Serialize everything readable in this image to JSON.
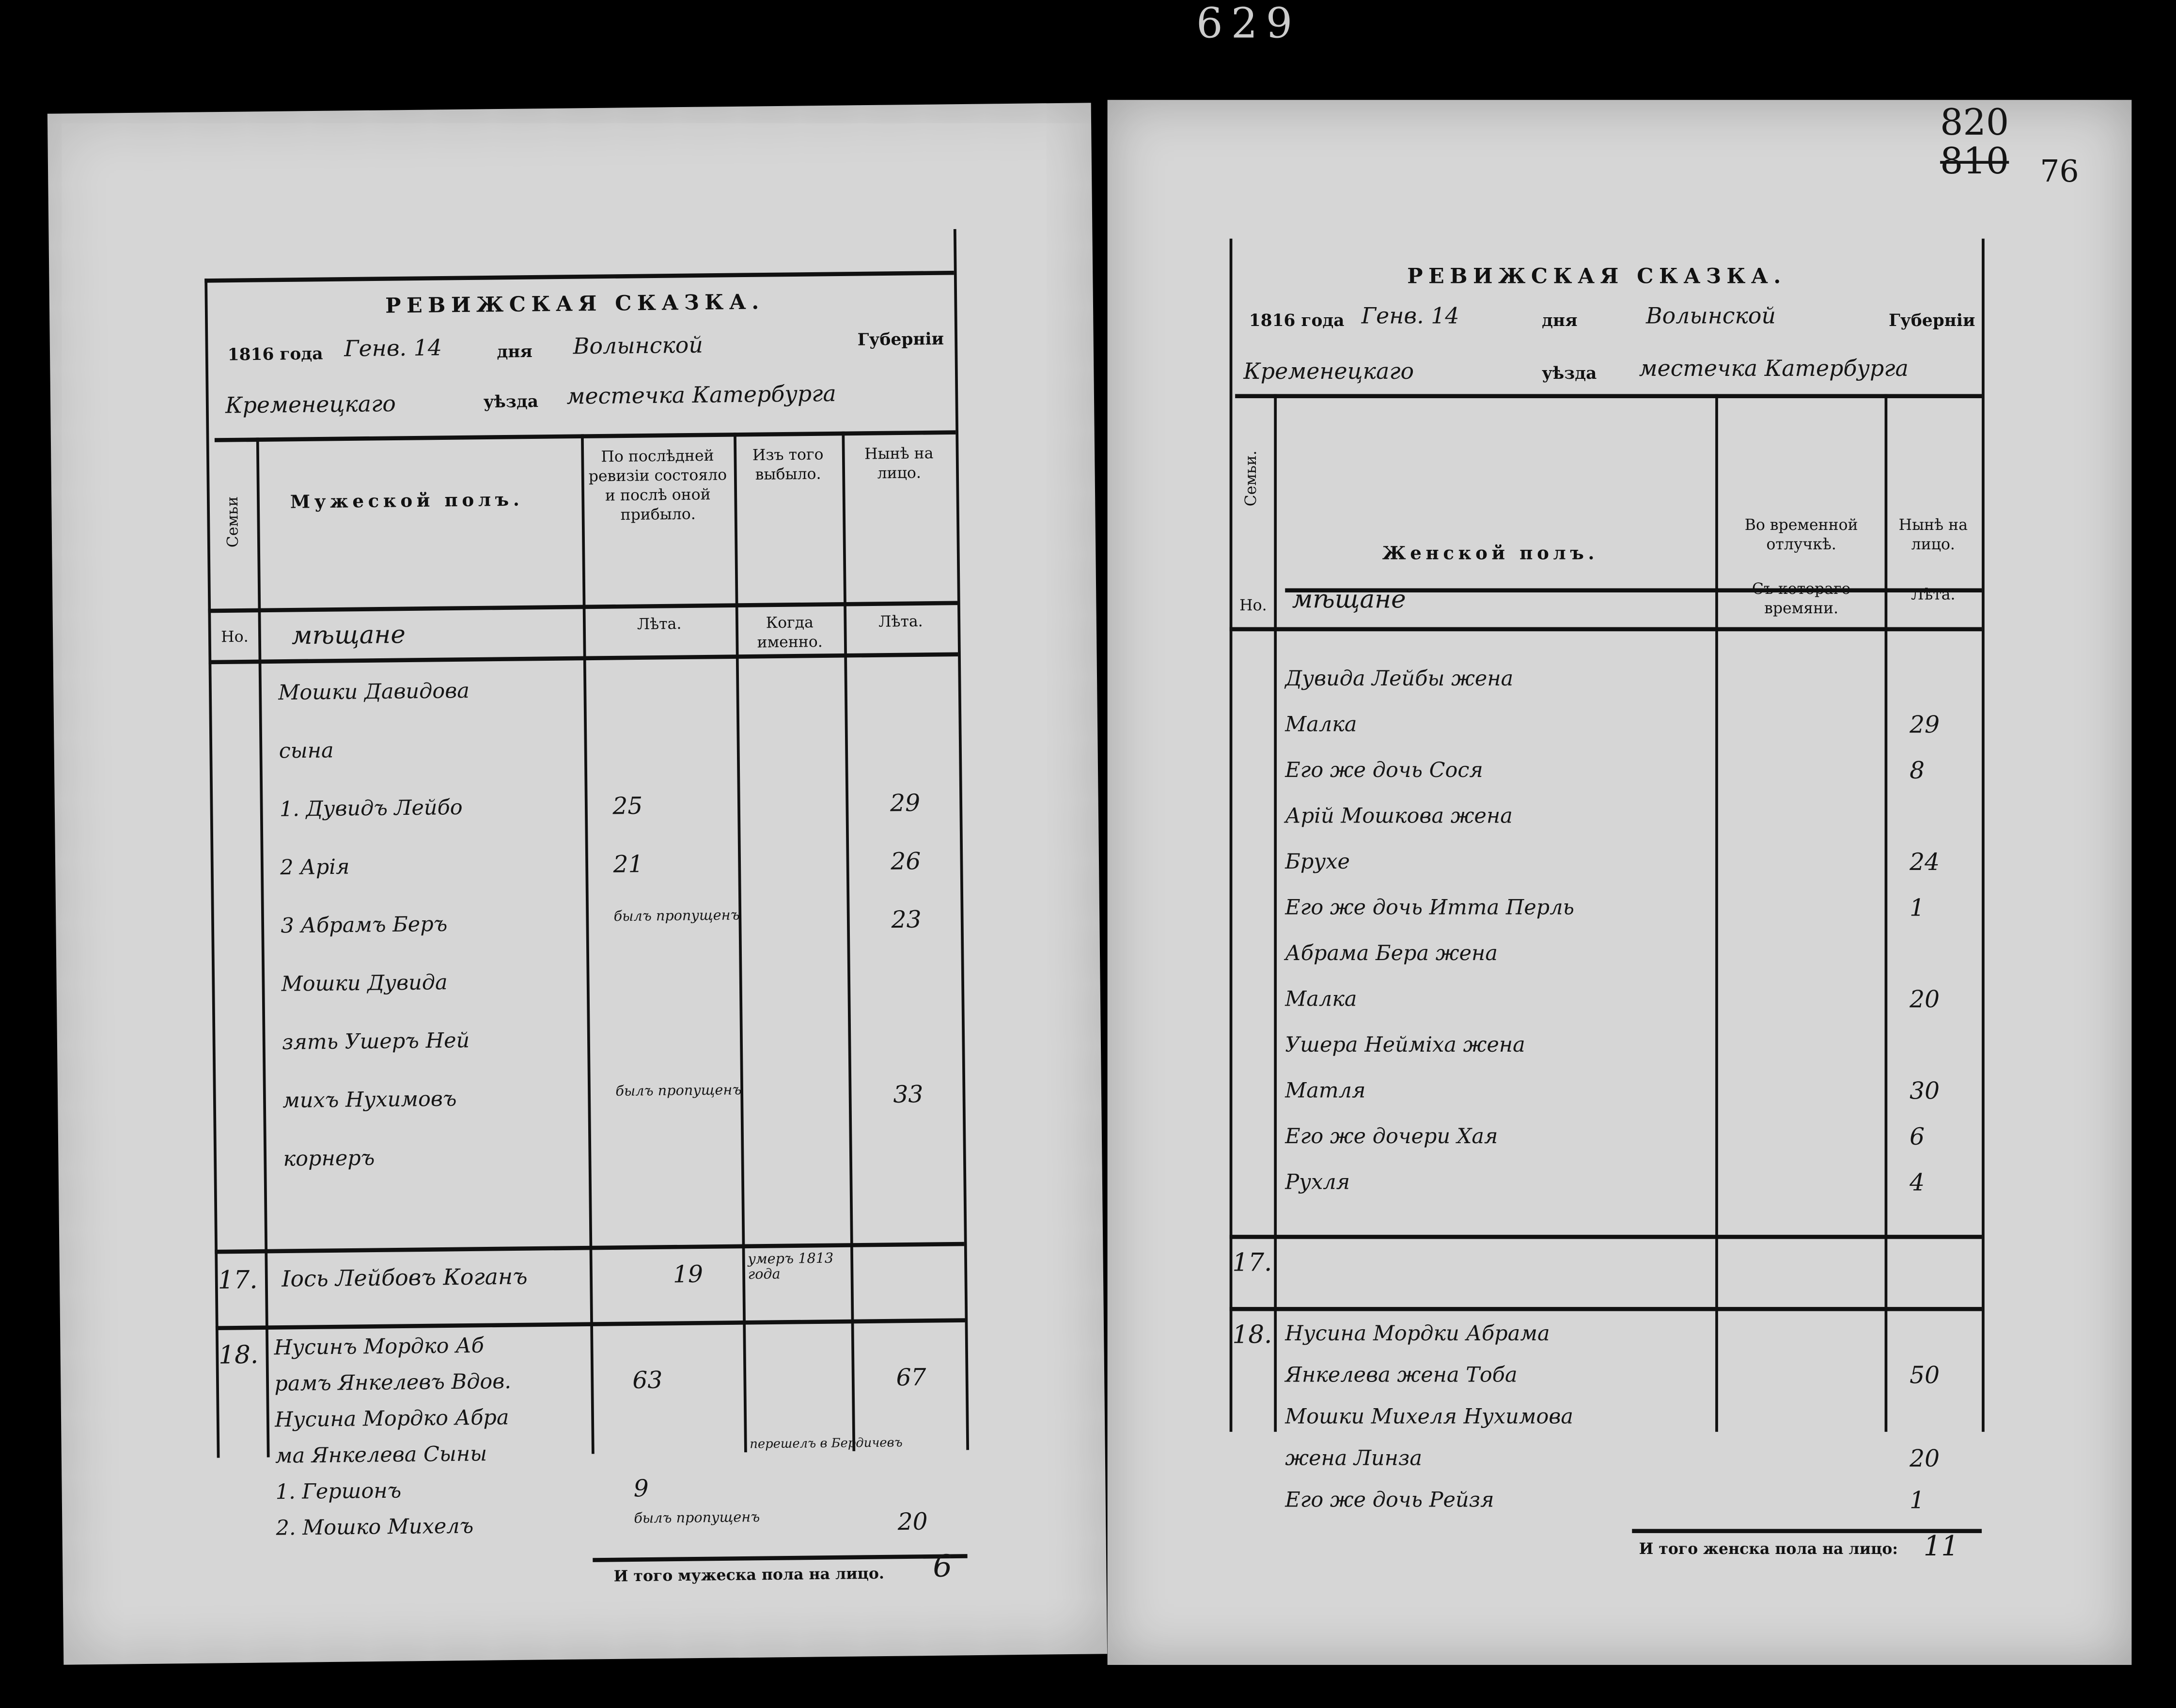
{
  "archive_marks": {
    "sheet_top": "629",
    "folio_new": "820",
    "folio_old": "810",
    "folio_extra": "76"
  },
  "left_page": {
    "title": "РЕВИЖСКАЯ СКАЗКА.",
    "year_label": "1816 года",
    "month_day": "Генв. 14",
    "day_label": "дня",
    "province": "Волынской",
    "province_label": "Губерніи",
    "district": "Кременецкаго",
    "district_label": "уѣзда",
    "town": "местечка Катербурга",
    "columns": {
      "family": "Семьи",
      "name": "Мужеской полъ.",
      "prev": "По послѣдней ревизіи состояло и послѣ оной прибыло.",
      "out": "Изъ того выбыло.",
      "now": "Нынѣ на лицо.",
      "no": "Но.",
      "prev_sub": "Лѣта.",
      "out_sub": "Когда именно.",
      "now_sub": "Лѣта."
    },
    "estate": "мѣщане",
    "entries": [
      {
        "name": "Мошки Давидова",
        "prev": "",
        "out": "",
        "now": ""
      },
      {
        "name": "сына",
        "prev": "",
        "out": "",
        "now": ""
      },
      {
        "name": "1. Дувидъ Лейбо",
        "prev": "25",
        "out": "",
        "now": "29"
      },
      {
        "name": "2 Арія",
        "prev": "21",
        "out": "",
        "now": "26"
      },
      {
        "name": "3 Абрамъ Беръ",
        "prev": "былъ пропущенъ",
        "out": "",
        "now": "23"
      },
      {
        "name": "Мошки Дувида",
        "prev": "",
        "out": "",
        "now": ""
      },
      {
        "name": "зять Ушеръ Ней",
        "prev": "",
        "out": "",
        "now": ""
      },
      {
        "name": "михъ Нухимовъ",
        "prev": "былъ пропущенъ",
        "out": "",
        "now": "33"
      },
      {
        "name": "корнеръ",
        "prev": "",
        "out": "",
        "now": ""
      }
    ],
    "row17": {
      "no": "17.",
      "name": "Іось Лейбовъ Коганъ",
      "prev": "19",
      "out": "умеръ 1813 года",
      "now": ""
    },
    "row18": {
      "no": "18.",
      "lines": [
        {
          "name": "Нусинъ Мордко Аб",
          "prev": "",
          "out": "",
          "now": ""
        },
        {
          "name": "рамъ Янкелевъ Вдов.",
          "prev": "63",
          "out": "",
          "now": "67"
        },
        {
          "name": "Нусина Мордко Абра",
          "prev": "",
          "out": "",
          "now": ""
        },
        {
          "name": "ма Янкелева Сыны",
          "prev": "",
          "out": "перешелъ в Бердичевъ",
          "now": ""
        },
        {
          "name": "1. Гершонъ",
          "prev": "9",
          "out": "",
          "now": ""
        },
        {
          "name": "2. Мошко Михелъ",
          "prev": "былъ пропущенъ",
          "out": "",
          "now": "20"
        }
      ]
    },
    "total_label": "И того мужеска пола на лицо.",
    "total_value": "6"
  },
  "right_page": {
    "title": "РЕВИЖСКАЯ СКАЗКА.",
    "year_label": "1816 года",
    "month_day": "Генв. 14",
    "day_label": "дня",
    "province": "Волынской",
    "province_label": "Губерніи",
    "district": "Кременецкаго",
    "district_label": "уѣзда",
    "town": "местечка Катербурга",
    "columns": {
      "family": "Семьи.",
      "name": "Женской полъ.",
      "away": "Во временной отлучкѣ.",
      "now": "Нынѣ на лицо.",
      "no": "Но.",
      "away_sub": "Съ котораго времяни.",
      "now_sub": "Лѣта."
    },
    "estate": "мѣщане",
    "entries": [
      {
        "name": "Дувида Лейбы жена",
        "now": ""
      },
      {
        "name": "Малка",
        "now": "29"
      },
      {
        "name": "Его же дочь Сося",
        "now": "8"
      },
      {
        "name": "Арій Мошкова жена",
        "now": ""
      },
      {
        "name": "Брухе",
        "now": "24"
      },
      {
        "name": "Его же дочь Итта Перль",
        "now": "1"
      },
      {
        "name": "Абрама Бера жена",
        "now": ""
      },
      {
        "name": "Малка",
        "now": "20"
      },
      {
        "name": "Ушера Нейміха жена",
        "now": ""
      },
      {
        "name": "Матля",
        "now": "30"
      },
      {
        "name": "Его же дочери Хая",
        "now": "6"
      },
      {
        "name": "Рухля",
        "now": "4"
      }
    ],
    "row17": {
      "no": "17."
    },
    "row18": {
      "no": "18.",
      "lines": [
        {
          "name": "Нусина Мордки Абрама",
          "now": ""
        },
        {
          "name": "Янкелева жена Тоба",
          "now": "50"
        },
        {
          "name": "Мошки Михеля Нухимова",
          "now": ""
        },
        {
          "name": "жена Линза",
          "now": "20"
        },
        {
          "name": "Его же дочь Рейзя",
          "now": "1"
        }
      ]
    },
    "total_label": "И того женска пола на лицо:",
    "total_value": "11"
  }
}
